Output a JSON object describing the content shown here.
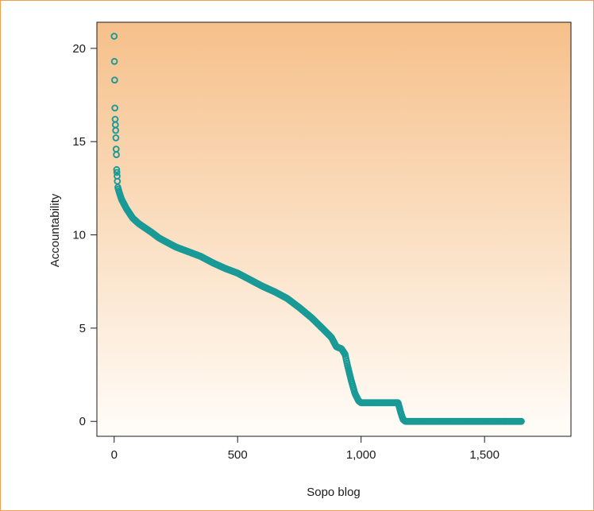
{
  "chart_data": {
    "type": "scatter",
    "title": "",
    "xlabel": "Sopo blog",
    "ylabel": "Accountability",
    "xlim": [
      -70,
      1850
    ],
    "ylim": [
      -0.8,
      21.4
    ],
    "x_ticks": [
      {
        "value": 0,
        "label": "0"
      },
      {
        "value": 500,
        "label": "500"
      },
      {
        "value": 1000,
        "label": "1,000"
      },
      {
        "value": 1500,
        "label": "1,500"
      }
    ],
    "y_ticks": [
      {
        "value": 0,
        "label": "0"
      },
      {
        "value": 5,
        "label": "5"
      },
      {
        "value": 10,
        "label": "10"
      },
      {
        "value": 15,
        "label": "15"
      },
      {
        "value": 20,
        "label": "20"
      }
    ],
    "marker": "open-circle",
    "marker_color": "#1a9a96",
    "background_gradient": {
      "top": "#f6c08a",
      "bottom": "#fffdf9"
    },
    "n_points": 1650,
    "series": [
      {
        "name": "",
        "points": [
          [
            0,
            20.65
          ],
          [
            1,
            19.3
          ],
          [
            2,
            18.3
          ],
          [
            3,
            16.8
          ],
          [
            4,
            16.2
          ],
          [
            5,
            15.9
          ],
          [
            6,
            15.6
          ],
          [
            7,
            15.2
          ],
          [
            8,
            14.6
          ],
          [
            9,
            14.3
          ],
          [
            10,
            13.5
          ],
          [
            11,
            13.35
          ],
          [
            12,
            13.15
          ],
          [
            14,
            12.6
          ],
          [
            20,
            12.3
          ],
          [
            30,
            11.9
          ],
          [
            50,
            11.4
          ],
          [
            75,
            10.9
          ],
          [
            100,
            10.6
          ],
          [
            150,
            10.15
          ],
          [
            180,
            9.85
          ],
          [
            200,
            9.7
          ],
          [
            250,
            9.35
          ],
          [
            300,
            9.1
          ],
          [
            350,
            8.85
          ],
          [
            400,
            8.5
          ],
          [
            450,
            8.2
          ],
          [
            500,
            7.95
          ],
          [
            550,
            7.6
          ],
          [
            600,
            7.25
          ],
          [
            650,
            6.95
          ],
          [
            700,
            6.6
          ],
          [
            750,
            6.1
          ],
          [
            800,
            5.55
          ],
          [
            850,
            4.9
          ],
          [
            880,
            4.5
          ],
          [
            900,
            4.0
          ],
          [
            920,
            3.9
          ],
          [
            935,
            3.6
          ],
          [
            945,
            3.0
          ],
          [
            960,
            2.2
          ],
          [
            975,
            1.5
          ],
          [
            990,
            1.1
          ],
          [
            1000,
            1.0
          ],
          [
            1050,
            1.0
          ],
          [
            1100,
            1.0
          ],
          [
            1150,
            1.0
          ],
          [
            1160,
            0.5
          ],
          [
            1170,
            0.1
          ],
          [
            1180,
            0.0
          ],
          [
            1300,
            0.0
          ],
          [
            1450,
            0.0
          ],
          [
            1550,
            0.0
          ],
          [
            1650,
            0.0
          ]
        ]
      }
    ]
  }
}
